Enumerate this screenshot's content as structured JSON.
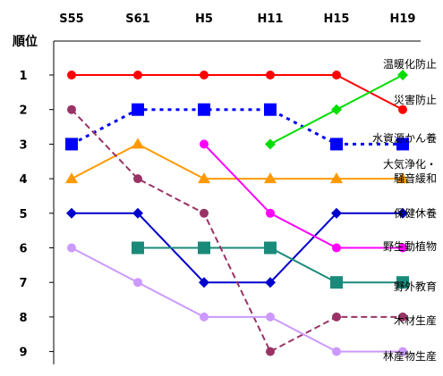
{
  "chart_data": {
    "type": "line",
    "ylabel": "順位",
    "categories": [
      "S55",
      "S61",
      "H5",
      "H11",
      "H15",
      "H19"
    ],
    "ylim": [
      1,
      9
    ],
    "y_inverted": true,
    "grid": false,
    "series": [
      {
        "name": "温暖化防止",
        "values": [
          null,
          null,
          null,
          null,
          null,
          1
        ],
        "color": "#00dd00",
        "marker": "diamond",
        "style": "solid"
      },
      {
        "name": "災害防止",
        "values": [
          1,
          1,
          1,
          1,
          1,
          2
        ],
        "color": "#ff0000",
        "marker": "circle",
        "style": "solid"
      },
      {
        "name": "水資源かん養",
        "values": [
          3,
          2,
          2,
          2,
          3,
          3
        ],
        "color": "#0000ff",
        "marker": "square",
        "style": "dotted"
      },
      {
        "name": "大気浄化・騒音緩和",
        "values": [
          4,
          3,
          4,
          4,
          4,
          4
        ],
        "color": "#ff9900",
        "marker": "triangle",
        "style": "solid"
      },
      {
        "name": "保健休養",
        "values": [
          5,
          5,
          7,
          7,
          5,
          5
        ],
        "color": "#0000cc",
        "marker": "diamond",
        "style": "solid"
      },
      {
        "name": "野生動植物",
        "values": [
          null,
          null,
          3,
          5,
          6,
          6
        ],
        "color": "#ff00ff",
        "marker": "circle",
        "style": "solid"
      },
      {
        "name": "野外教育",
        "values": [
          null,
          6,
          6,
          6,
          7,
          7
        ],
        "color": "#1a8a7a",
        "marker": "square",
        "style": "solid"
      },
      {
        "name": "木材生産",
        "values": [
          2,
          4,
          5,
          9,
          8,
          8
        ],
        "color": "#993366",
        "marker": "circle",
        "style": "dashed"
      },
      {
        "name": "林産物生産",
        "values": [
          6,
          7,
          8,
          8,
          9,
          9
        ],
        "color": "#cc99ff",
        "marker": "circle",
        "style": "solid"
      }
    ],
    "extra_segments": [
      {
        "series": "温暖化防止",
        "points": [
          [
            3,
            3
          ],
          [
            4,
            2
          ],
          [
            5,
            1
          ]
        ],
        "color": "#00dd00",
        "marker": "diamond",
        "style": "solid"
      }
    ],
    "labels": [
      {
        "text": "温暖化防止",
        "lines": [
          "温暖化防止"
        ]
      },
      {
        "text": "災害防止",
        "lines": [
          "災害防止"
        ]
      },
      {
        "text": "水資源かん養",
        "lines": [
          "水資源かん養"
        ]
      },
      {
        "text": "大気浄化・騒音緩和",
        "lines": [
          "大気浄化・",
          "騒音緩和"
        ]
      },
      {
        "text": "保健休養",
        "lines": [
          "保健休養"
        ]
      },
      {
        "text": "野生動植物",
        "lines": [
          "野生動植物"
        ]
      },
      {
        "text": "野外教育",
        "lines": [
          "野外教育"
        ]
      },
      {
        "text": "木材生産",
        "lines": [
          "木材生産"
        ]
      },
      {
        "text": "林産物生産",
        "lines": [
          "林産物生産"
        ]
      }
    ]
  }
}
